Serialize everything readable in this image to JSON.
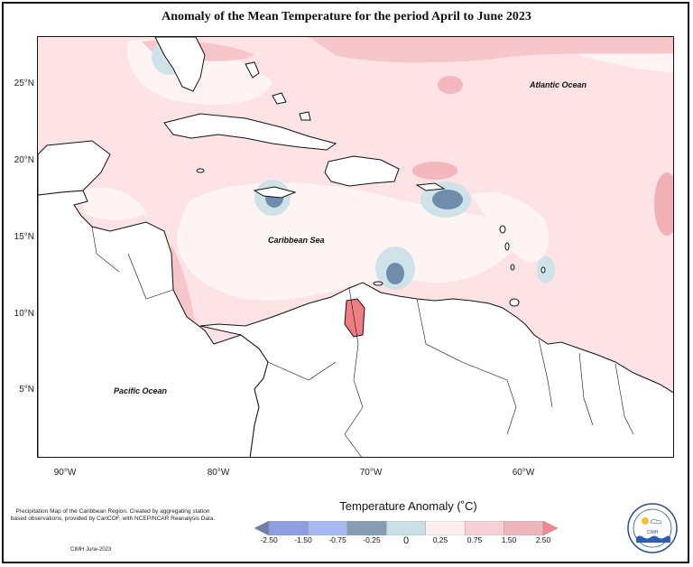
{
  "title": "Anomaly of the Mean Temperature for the period April to June 2023",
  "map": {
    "lat_ticks": [
      "25°N",
      "20°N",
      "15°N",
      "10°N",
      "5°N"
    ],
    "lon_ticks": [
      "90°W",
      "80°W",
      "70°W",
      "60°W"
    ],
    "labels": {
      "atlantic": "Atlantic Ocean",
      "caribbean": "Caribbean Sea",
      "pacific": "Pacific Ocean"
    }
  },
  "legend": {
    "title": "Temperature Anomaly (˚C)",
    "values": [
      "-2.50",
      "-1.50",
      "-0.75",
      "-0.25",
      "0",
      "0.25",
      "0.75",
      "1.50",
      "2.50"
    ],
    "colors": [
      "#6d7faa",
      "#8e9ee0",
      "#a6b9f0",
      "#869cb3",
      "#cbe0e6",
      "#fdeff0",
      "#f7d0d5",
      "#eeb6bd",
      "#f5888f"
    ]
  },
  "footer": {
    "note": "Precipitation Map of the Caribbean Region. Created by aggregating station based observations, provided by CariCOF, with NCEP/NCAR Reanalysis Data.",
    "credit": "CIMH June-2023"
  },
  "logo": {
    "text": "CIMH"
  },
  "colors": {
    "base_anomaly": "#fde3e5",
    "warm": "#f6c6cb",
    "warmer": "#eda9b0",
    "strong_warm": "#f07c84",
    "neutral": "#fff4f4",
    "cool": "#cfe2e8",
    "cold": "#6f8cad",
    "land": "#ffffff"
  }
}
